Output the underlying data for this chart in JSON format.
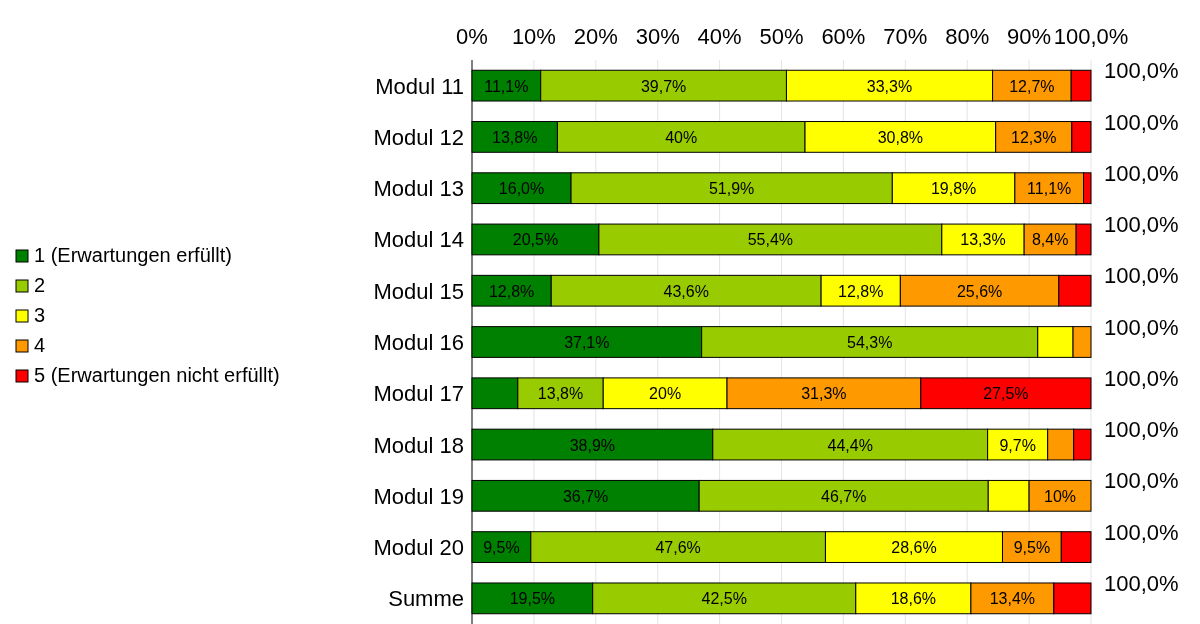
{
  "chart_data": {
    "type": "bar",
    "orientation": "horizontal",
    "stacked": true,
    "categories": [
      "Modul 11",
      "Modul 12",
      "Modul 13",
      "Modul 14",
      "Modul 15",
      "Modul 16",
      "Modul 17",
      "Modul 18",
      "Modul 19",
      "Modul 20",
      "Summe"
    ],
    "series": [
      {
        "name": "1 (Erwartungen erfüllt)",
        "color": "#008000",
        "values": [
          11.1,
          13.8,
          16.0,
          20.5,
          12.8,
          37.1,
          7.4,
          38.9,
          36.7,
          9.5,
          19.5
        ],
        "value_labels": [
          "11,1%",
          "13,8%",
          "16,0%",
          "20,5%",
          "12,8%",
          "37,1%",
          null,
          "38,9%",
          "36,7%",
          "9,5%",
          "19,5%"
        ]
      },
      {
        "name": "2",
        "color": "#99cc00",
        "values": [
          39.7,
          40,
          51.9,
          55.4,
          43.6,
          54.3,
          13.8,
          44.4,
          46.7,
          47.6,
          42.5
        ],
        "value_labels": [
          "39,7%",
          "40%",
          "51,9%",
          "55,4%",
          "43,6%",
          "54,3%",
          "13,8%",
          "44,4%",
          "46,7%",
          "47,6%",
          "42,5%"
        ]
      },
      {
        "name": "3",
        "color": "#ffff00",
        "values": [
          33.3,
          30.8,
          19.8,
          13.3,
          12.8,
          5.7,
          20,
          9.7,
          6.6,
          28.6,
          18.6
        ],
        "value_labels": [
          "33,3%",
          "30,8%",
          "19,8%",
          "13,3%",
          "12,8%",
          null,
          "20%",
          "9,7%",
          null,
          "28,6%",
          "18,6%"
        ]
      },
      {
        "name": "4",
        "color": "#ff9900",
        "values": [
          12.7,
          12.3,
          11.1,
          8.4,
          25.6,
          2.9,
          31.3,
          4.2,
          10,
          9.5,
          13.4
        ],
        "value_labels": [
          "12,7%",
          "12,3%",
          "11,1%",
          "8,4%",
          "25,6%",
          null,
          "31,3%",
          null,
          "10%",
          "9,5%",
          "13,4%"
        ]
      },
      {
        "name": "5 (Erwartungen nicht erfüllt)",
        "color": "#ff0000",
        "values": [
          3.2,
          3.1,
          1.2,
          2.4,
          5.2,
          0,
          27.5,
          2.8,
          0,
          4.8,
          6.0
        ],
        "value_labels": [
          null,
          null,
          null,
          null,
          null,
          null,
          "27,5%",
          null,
          null,
          null,
          null
        ]
      }
    ],
    "totals": [
      "100,0%",
      "100,0%",
      "100,0%",
      "100,0%",
      "100,0%",
      "100,0%",
      "100,0%",
      "100,0%",
      "100,0%",
      "100,0%",
      "100,0%"
    ],
    "xlim": [
      0,
      100
    ],
    "xticks": [
      {
        "value": 0,
        "label": "0%"
      },
      {
        "value": 10,
        "label": "10%"
      },
      {
        "value": 20,
        "label": "20%"
      },
      {
        "value": 30,
        "label": "30%"
      },
      {
        "value": 40,
        "label": "40%"
      },
      {
        "value": 50,
        "label": "50%"
      },
      {
        "value": 60,
        "label": "60%"
      },
      {
        "value": 70,
        "label": "70%"
      },
      {
        "value": 80,
        "label": "80%"
      },
      {
        "value": 90,
        "label": "90%"
      },
      {
        "value": 100,
        "label": "100,0%"
      }
    ],
    "grid": "x",
    "legend": "left"
  }
}
